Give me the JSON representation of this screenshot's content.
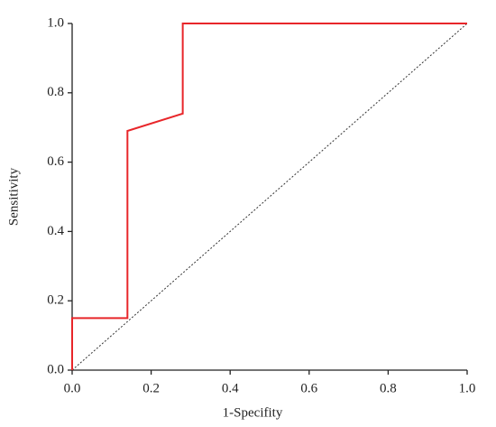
{
  "chart_data": {
    "type": "line",
    "xlabel": "1-Specifity",
    "ylabel": "Sensitivity",
    "xlim": [
      0,
      1
    ],
    "ylim": [
      0,
      1
    ],
    "xticks": [
      {
        "value": 0,
        "label": "0.0"
      },
      0.2,
      0.4,
      0.6,
      0.8,
      {
        "value": 1,
        "label": "1.0"
      }
    ],
    "yticks": [
      {
        "value": 0,
        "label": "0.0"
      },
      0.2,
      0.4,
      0.6,
      0.8,
      {
        "value": 1,
        "label": "1.0"
      }
    ],
    "series": [
      {
        "color": "#e8262a",
        "dashed": false,
        "x": [
          0,
          0,
          0.14,
          0.14,
          0.28,
          0.28,
          1
        ],
        "values": [
          0,
          0.15,
          0.15,
          0.69,
          0.74,
          1,
          1
        ]
      },
      {
        "color": "#333333",
        "dashed": true,
        "x": [
          0,
          1
        ],
        "values": [
          0,
          1
        ]
      }
    ]
  }
}
